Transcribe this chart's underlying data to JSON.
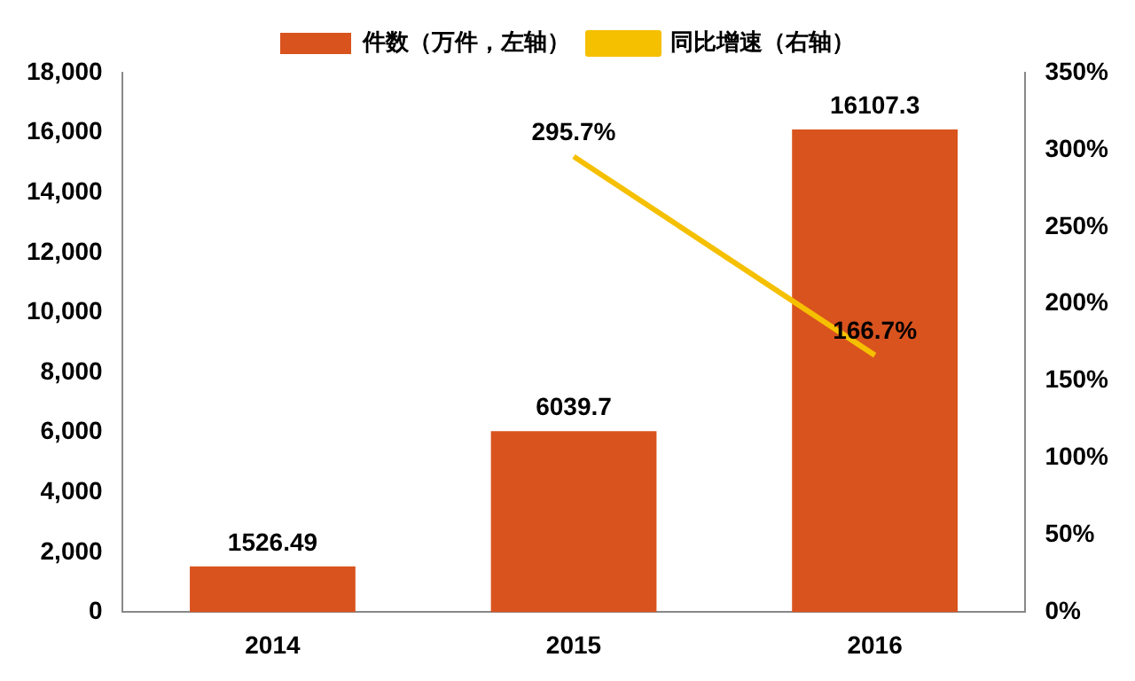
{
  "chart_data": {
    "type": "bar",
    "categories": [
      "2014",
      "2015",
      "2016"
    ],
    "series": [
      {
        "name": "件数（万件，左轴）",
        "color": "#d9531e",
        "values": [
          1526.49,
          6039.7,
          16107.3
        ],
        "value_labels": [
          "1526.49",
          "6039.7",
          "16107.3"
        ]
      },
      {
        "name": "同比增速（右轴）",
        "type": "line",
        "axis": "y2",
        "color": "#f5c000",
        "values": [
          null,
          295.7,
          166.7
        ],
        "value_labels": [
          null,
          "295.7%",
          "166.7%"
        ]
      }
    ],
    "ylim": [
      0,
      18000
    ],
    "yticks": [
      0,
      {
        "value": 2000,
        "label": "2,000"
      },
      {
        "value": 4000,
        "label": "4,000"
      },
      {
        "value": 6000,
        "label": "6,000"
      },
      {
        "value": 8000,
        "label": "8,000"
      },
      {
        "value": 10000,
        "label": "10,000"
      },
      {
        "value": 12000,
        "label": "12,000"
      },
      {
        "value": 14000,
        "label": "14,000"
      },
      {
        "value": 16000,
        "label": "16,000"
      },
      {
        "value": 18000,
        "label": "18,000"
      }
    ],
    "y2lim": [
      0,
      350
    ],
    "y2ticks": [
      {
        "value": 0,
        "label": "0%"
      },
      {
        "value": 50,
        "label": "50%"
      },
      {
        "value": 100,
        "label": "100%"
      },
      {
        "value": 150,
        "label": "150%"
      },
      {
        "value": 200,
        "label": "200%"
      },
      {
        "value": 250,
        "label": "250%"
      },
      {
        "value": 300,
        "label": "300%"
      },
      {
        "value": 350,
        "label": "350%"
      }
    ],
    "grid": false,
    "legend": "top",
    "marker": "none",
    "line_style": "solid"
  }
}
